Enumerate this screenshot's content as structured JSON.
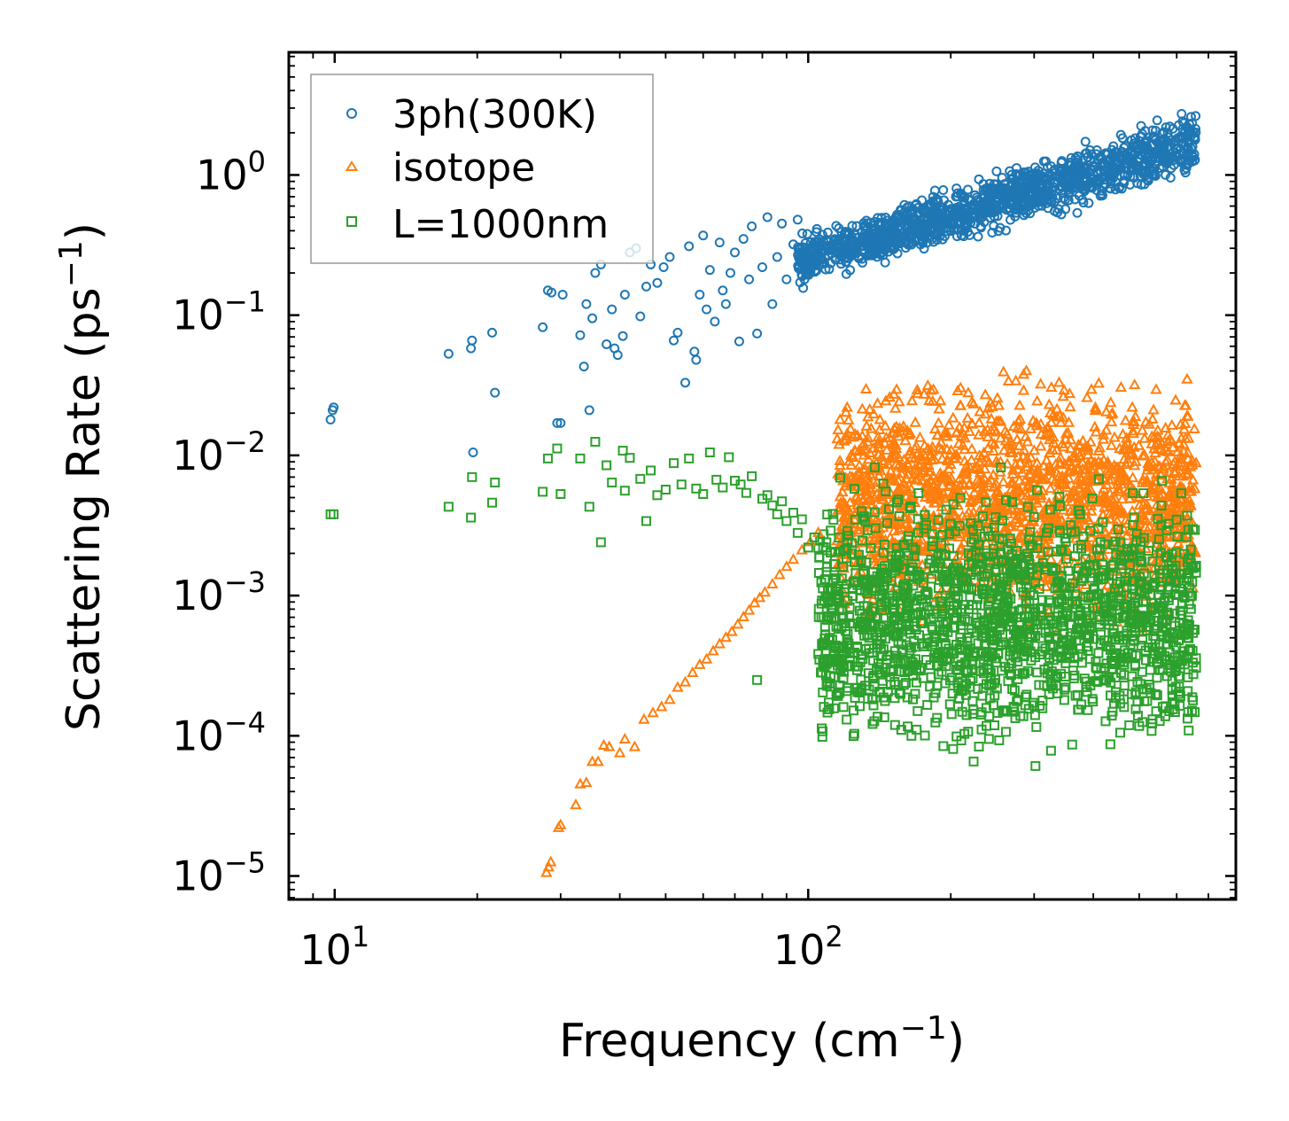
{
  "chart_data": {
    "type": "scatter",
    "title": "",
    "xlabel": "Frequency (cm",
    "xlabel_sup": "−1",
    "xlabel_end": ")",
    "ylabel": "Scattering Rate (ps",
    "ylabel_sup": "−1",
    "ylabel_end": ")",
    "xscale": "log",
    "yscale": "log",
    "xlim": [
      8.0,
      800
    ],
    "ylim": [
      6.8e-06,
      7.5
    ],
    "xticks": [
      {
        "base": "10",
        "exp": "1",
        "value": 10
      },
      {
        "base": "10",
        "exp": "2",
        "value": 100
      }
    ],
    "yticks": [
      {
        "base": "10",
        "exp": "0",
        "value": 1
      },
      {
        "base": "10",
        "exp": "−1",
        "value": 0.1
      },
      {
        "base": "10",
        "exp": "−2",
        "value": 0.01
      },
      {
        "base": "10",
        "exp": "−3",
        "value": 0.001
      },
      {
        "base": "10",
        "exp": "−4",
        "value": 0.0001
      },
      {
        "base": "10",
        "exp": "−5",
        "value": 1e-05
      }
    ],
    "legend_position": "top-left",
    "series": [
      {
        "name": "3ph(300K)",
        "marker": "circle",
        "color": "#1f77b4",
        "points": [
          [
            9.8,
            0.018
          ],
          [
            9.9,
            0.021
          ],
          [
            9.95,
            0.022
          ],
          [
            17.4,
            0.053
          ],
          [
            19.4,
            0.058
          ],
          [
            19.5,
            0.066
          ],
          [
            19.6,
            0.0105
          ],
          [
            21.5,
            0.075
          ],
          [
            21.8,
            0.028
          ],
          [
            27.5,
            0.082
          ],
          [
            28.2,
            0.15
          ],
          [
            28.7,
            0.145
          ],
          [
            29.5,
            0.017
          ],
          [
            30.0,
            0.017
          ],
          [
            30.3,
            0.14
          ],
          [
            33.0,
            0.072
          ],
          [
            33.6,
            0.043
          ],
          [
            34.0,
            0.12
          ],
          [
            34.5,
            0.021
          ],
          [
            35.0,
            0.095
          ],
          [
            35.5,
            0.2
          ],
          [
            36.5,
            0.23
          ],
          [
            37.5,
            0.062
          ],
          [
            38.5,
            0.11
          ],
          [
            39.0,
            0.058
          ],
          [
            39.6,
            0.052
          ],
          [
            40.6,
            0.071
          ],
          [
            41.0,
            0.14
          ],
          [
            42.0,
            0.28
          ],
          [
            43.3,
            0.3
          ],
          [
            44.2,
            0.098
          ],
          [
            45.5,
            0.16
          ],
          [
            46.5,
            0.23
          ],
          [
            48.0,
            0.17
          ],
          [
            49.5,
            0.22
          ],
          [
            51.0,
            0.26
          ],
          [
            52.0,
            0.066
          ],
          [
            53.0,
            0.075
          ],
          [
            55.0,
            0.033
          ],
          [
            56.0,
            0.31
          ],
          [
            57.5,
            0.055
          ],
          [
            58.0,
            0.048
          ],
          [
            59.0,
            0.14
          ],
          [
            60.0,
            0.37
          ],
          [
            61.0,
            0.11
          ],
          [
            62.0,
            0.21
          ],
          [
            63.5,
            0.09
          ],
          [
            65.0,
            0.33
          ],
          [
            66.0,
            0.15
          ],
          [
            67.0,
            0.12
          ],
          [
            68.5,
            0.2
          ],
          [
            70.0,
            0.28
          ],
          [
            71.5,
            0.065
          ],
          [
            73.0,
            0.35
          ],
          [
            75.0,
            0.18
          ],
          [
            76.0,
            0.43
          ],
          [
            78.0,
            0.074
          ],
          [
            80.0,
            0.22
          ],
          [
            82.0,
            0.5
          ],
          [
            84.0,
            0.12
          ],
          [
            86.0,
            0.26
          ],
          [
            88.0,
            0.45
          ],
          [
            90.0,
            0.18
          ],
          [
            93.0,
            0.32
          ],
          [
            95.0,
            0.48
          ],
          [
            97.0,
            0.24
          ]
        ]
      },
      {
        "name": "isotope",
        "marker": "triangle",
        "color": "#ff7f0e",
        "points": [
          [
            28.0,
            1.05e-05
          ],
          [
            28.3,
            1.15e-05
          ],
          [
            28.6,
            1.25e-05
          ],
          [
            29.7,
            2.2e-05
          ],
          [
            30.0,
            2.3e-05
          ],
          [
            32.3,
            3.2e-05
          ],
          [
            33.0,
            4.5e-05
          ],
          [
            34.0,
            4.6e-05
          ],
          [
            35.0,
            6.5e-05
          ],
          [
            36.0,
            6.5e-05
          ],
          [
            37.0,
            8.5e-05
          ],
          [
            38.0,
            8.3e-05
          ],
          [
            40.0,
            7.5e-05
          ],
          [
            41.0,
            9.4e-05
          ],
          [
            43.0,
            8.3e-05
          ],
          [
            45.0,
            0.00013
          ],
          [
            47.0,
            0.000145
          ],
          [
            49.0,
            0.00016
          ],
          [
            51.0,
            0.00018
          ],
          [
            53.0,
            0.00022
          ],
          [
            55.0,
            0.00024
          ],
          [
            57.0,
            0.00028
          ],
          [
            59.0,
            0.00032
          ],
          [
            61.0,
            0.00035
          ],
          [
            63.0,
            0.0004
          ],
          [
            65.0,
            0.00045
          ],
          [
            67.0,
            0.0005
          ],
          [
            69.0,
            0.00055
          ],
          [
            71.0,
            0.00062
          ],
          [
            73.0,
            0.0007
          ],
          [
            75.0,
            0.00078
          ],
          [
            77.0,
            0.00088
          ],
          [
            79.0,
            0.00096
          ],
          [
            81.0,
            0.00105
          ],
          [
            84.0,
            0.0012
          ],
          [
            87.0,
            0.0014
          ],
          [
            90.0,
            0.0016
          ],
          [
            93.0,
            0.0018
          ],
          [
            97.0,
            0.0021
          ],
          [
            101.0,
            0.0024
          ],
          [
            105.0,
            0.0028
          ]
        ]
      },
      {
        "name": "L=1000nm",
        "marker": "square",
        "color": "#2ca02c",
        "points": [
          [
            9.8,
            0.0038
          ],
          [
            9.95,
            0.0038
          ],
          [
            17.4,
            0.0043
          ],
          [
            19.4,
            0.0036
          ],
          [
            19.5,
            0.007
          ],
          [
            21.5,
            0.0046
          ],
          [
            21.8,
            0.0064
          ],
          [
            27.5,
            0.0055
          ],
          [
            28.2,
            0.0095
          ],
          [
            29.5,
            0.0112
          ],
          [
            30.0,
            0.0053
          ],
          [
            33.0,
            0.0095
          ],
          [
            34.5,
            0.0043
          ],
          [
            35.5,
            0.0125
          ],
          [
            36.5,
            0.0024
          ],
          [
            37.5,
            0.0085
          ],
          [
            38.5,
            0.0064
          ],
          [
            40.6,
            0.0108
          ],
          [
            41.0,
            0.0056
          ],
          [
            42.0,
            0.0096
          ],
          [
            44.2,
            0.0068
          ],
          [
            45.5,
            0.0034
          ],
          [
            46.5,
            0.0078
          ],
          [
            48.0,
            0.0052
          ],
          [
            50.0,
            0.0057
          ],
          [
            52.0,
            0.0088
          ],
          [
            54.0,
            0.0062
          ],
          [
            56.0,
            0.0095
          ],
          [
            58.0,
            0.0058
          ],
          [
            60.0,
            0.0053
          ],
          [
            62.0,
            0.0105
          ],
          [
            64.0,
            0.0067
          ],
          [
            66.0,
            0.0059
          ],
          [
            68.0,
            0.0097
          ],
          [
            70.0,
            0.0066
          ],
          [
            72.0,
            0.0062
          ],
          [
            74.0,
            0.0054
          ],
          [
            76.0,
            0.0071
          ],
          [
            78.0,
            0.00025
          ],
          [
            80.0,
            0.0049
          ],
          [
            82.0,
            0.0052
          ],
          [
            84.0,
            0.0044
          ],
          [
            86.0,
            0.0038
          ],
          [
            88.0,
            0.0047
          ],
          [
            90.0,
            0.0034
          ],
          [
            93.0,
            0.0039
          ],
          [
            95.0,
            0.0028
          ],
          [
            97.0,
            0.0035
          ],
          [
            100.0,
            0.0022
          ],
          [
            103.0,
            0.0026
          ]
        ]
      }
    ],
    "dense_bands": [
      {
        "series": "3ph(300K)",
        "xrange": [
          95,
          660
        ],
        "ylow_at_start": 0.14,
        "yhigh_at_start": 0.4,
        "ylow_at_end": 0.9,
        "yhigh_at_end": 3.4
      },
      {
        "series": "isotope",
        "xrange": [
          115,
          660
        ],
        "ylow": 0.0004,
        "yhigh": 0.055
      },
      {
        "series": "L=1000nm",
        "xrange": [
          105,
          660
        ],
        "ylow": 5e-05,
        "yhigh": 0.009
      }
    ]
  }
}
